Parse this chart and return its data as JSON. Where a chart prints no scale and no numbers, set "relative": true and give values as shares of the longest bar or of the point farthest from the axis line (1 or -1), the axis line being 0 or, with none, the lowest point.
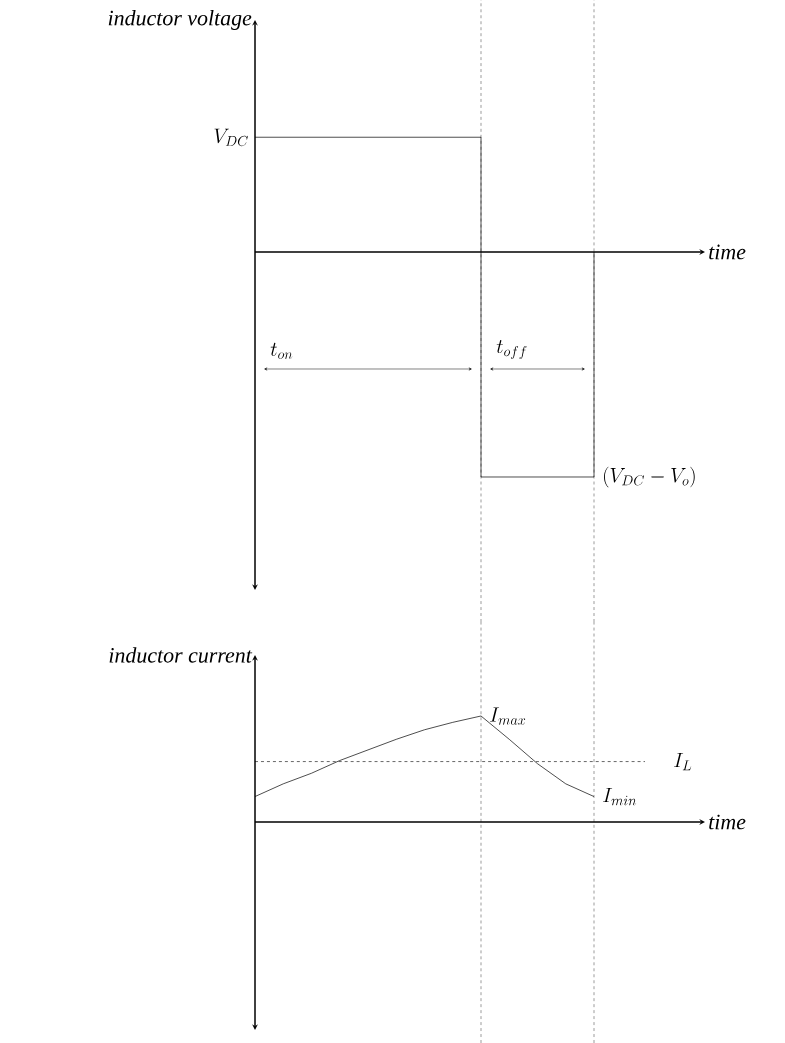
{
  "chart_data": [
    {
      "type": "step",
      "relative": true,
      "ylabel": "inductor voltage",
      "xlabel": "time",
      "line_style": "solid",
      "categories": [
        null,
        null,
        null,
        null
      ],
      "series": [
        {
          "color": "#000000",
          "values": [
            0.51,
            0.51,
            -1,
            0
          ]
        }
      ],
      "annotations": [
        "V_{DC}",
        "(V_{DC}-V_o)",
        "t_{on}",
        "t_{off}"
      ]
    },
    {
      "type": "line",
      "relative": true,
      "ylabel": "inductor current",
      "xlabel": "time",
      "line_style": "solid",
      "categories": [
        null,
        null,
        null,
        null,
        null,
        null,
        null,
        null,
        null,
        null,
        null,
        null,
        null
      ],
      "series": [
        {
          "color": "#000000",
          "values": [
            0.24,
            0.36,
            0.46,
            0.58,
            0.68,
            0.78,
            0.87,
            0.94,
            1,
            0.78,
            0.55,
            0.36,
            0.24
          ]
        }
      ],
      "ref_lines": [
        {
          "axis": "y",
          "value": 0.57,
          "label": "I_L",
          "line_style": "dashed"
        }
      ],
      "annotations": [
        "I_{max}",
        "I_{min}"
      ]
    }
  ]
}
